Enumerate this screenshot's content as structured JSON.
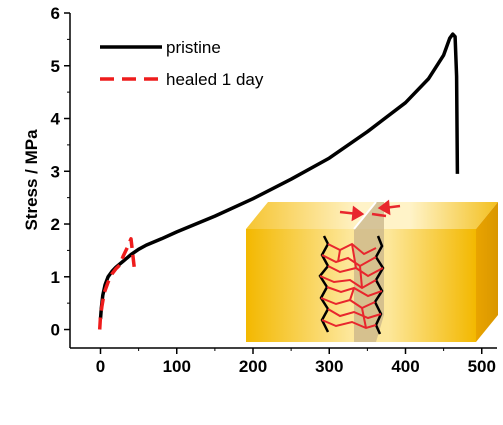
{
  "chart_data": {
    "type": "line",
    "title": "",
    "xlabel": "",
    "ylabel": "Stress / MPa",
    "xlim": [
      -40,
      520
    ],
    "ylim": [
      -0.35,
      6
    ],
    "x_ticks": [
      "0",
      "100",
      "200",
      "300",
      "400",
      "500"
    ],
    "y_ticks": [
      "0",
      "1",
      "2",
      "3",
      "4",
      "5",
      "6"
    ],
    "grid": false,
    "legend_position": "top-left",
    "series": [
      {
        "name": "pristine",
        "color": "#000000",
        "style": "solid",
        "points": [
          [
            0,
            0.2
          ],
          [
            1,
            0.4
          ],
          [
            3,
            0.65
          ],
          [
            6,
            0.85
          ],
          [
            10,
            1.0
          ],
          [
            15,
            1.1
          ],
          [
            20,
            1.18
          ],
          [
            30,
            1.3
          ],
          [
            40,
            1.42
          ],
          [
            50,
            1.52
          ],
          [
            60,
            1.6
          ],
          [
            80,
            1.72
          ],
          [
            100,
            1.85
          ],
          [
            150,
            2.15
          ],
          [
            200,
            2.48
          ],
          [
            250,
            2.85
          ],
          [
            300,
            3.25
          ],
          [
            350,
            3.75
          ],
          [
            400,
            4.3
          ],
          [
            430,
            4.75
          ],
          [
            450,
            5.2
          ],
          [
            458,
            5.52
          ],
          [
            462,
            5.6
          ],
          [
            465,
            5.55
          ],
          [
            467,
            4.8
          ],
          [
            468,
            2.95
          ]
        ]
      },
      {
        "name": "healed 1 day",
        "color": "#ee1c1c",
        "style": "dashed",
        "points": [
          [
            -1,
            0.0
          ],
          [
            0,
            0.25
          ],
          [
            2,
            0.45
          ],
          [
            5,
            0.7
          ],
          [
            10,
            0.9
          ],
          [
            15,
            1.05
          ],
          [
            20,
            1.15
          ],
          [
            25,
            1.22
          ],
          [
            30,
            1.4
          ],
          [
            35,
            1.55
          ],
          [
            40,
            1.72
          ],
          [
            44,
            1.2
          ],
          [
            45,
            1.1
          ]
        ]
      }
    ]
  }
}
